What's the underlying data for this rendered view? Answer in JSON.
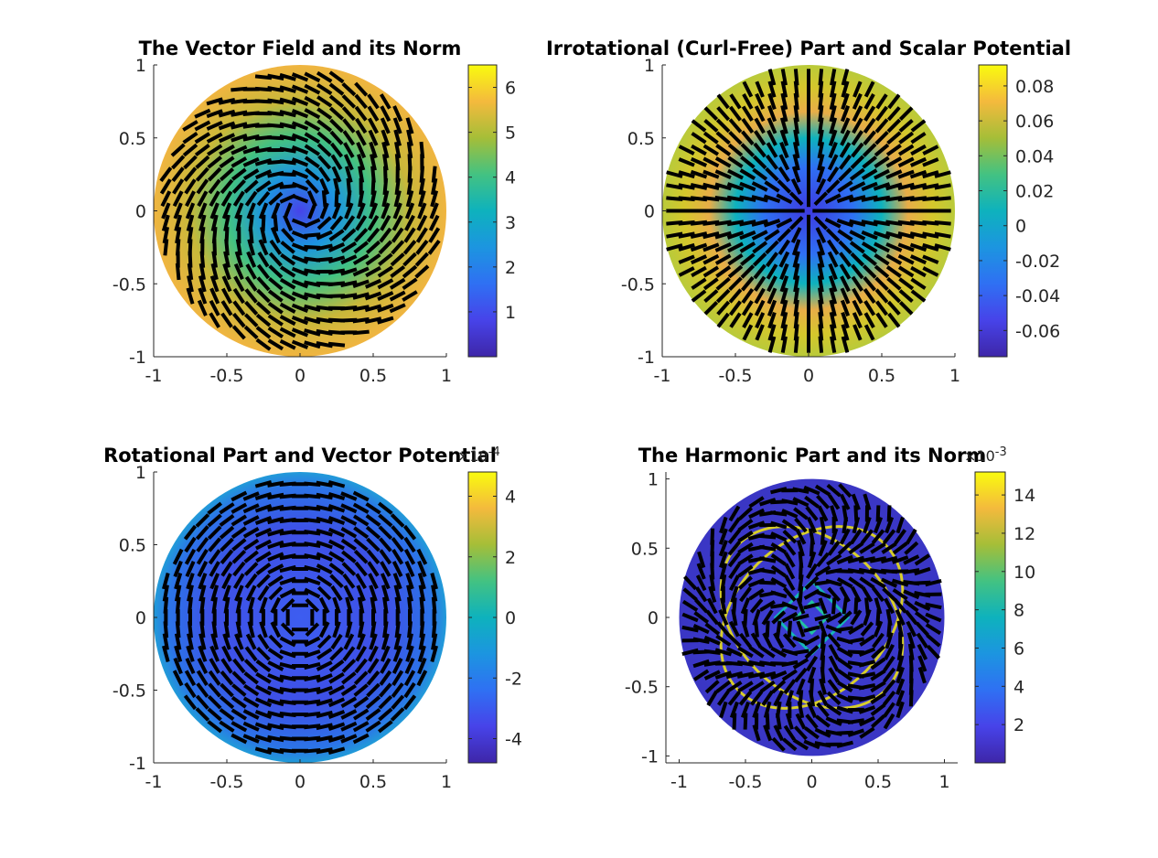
{
  "chart_data": [
    {
      "type": "heatmap",
      "title": "The Vector Field and its Norm",
      "field": "rotational swirl with magnitude growing toward the rim",
      "xlim": [
        -1,
        1
      ],
      "ylim": [
        -1,
        1
      ],
      "xticks": [
        -1,
        -0.5,
        0,
        0.5,
        1
      ],
      "yticks": [
        -1,
        -0.5,
        0,
        0.5,
        1
      ],
      "xtick_labels": [
        "-1",
        "-0.5",
        "0",
        "0.5",
        "1"
      ],
      "ytick_labels": [
        "-1",
        "-0.5",
        "0",
        "0.5",
        "1"
      ],
      "colorbar": {
        "range": [
          0,
          6.5
        ],
        "ticks": [
          1,
          2,
          3,
          4,
          5,
          6
        ],
        "tick_labels": [
          "1",
          "2",
          "3",
          "4",
          "5",
          "6"
        ],
        "exponent_label": ""
      },
      "colormap": "parula",
      "arrows": "black quiver segments over a filled unit disk"
    },
    {
      "type": "heatmap",
      "title": "Irrotational (Curl-Free) Part and Scalar Potential",
      "field": "radial arrows; potential low at centre, high at rim",
      "xlim": [
        -1,
        1
      ],
      "ylim": [
        -1,
        1
      ],
      "xticks": [
        -1,
        -0.5,
        0,
        0.5,
        1
      ],
      "yticks": [
        -1,
        -0.5,
        0,
        0.5,
        1
      ],
      "xtick_labels": [
        "-1",
        "-0.5",
        "0",
        "0.5",
        "1"
      ],
      "ytick_labels": [
        "-1",
        "-0.5",
        "0",
        "0.5",
        "1"
      ],
      "colorbar": {
        "range": [
          -0.075,
          0.092
        ],
        "ticks": [
          -0.06,
          -0.04,
          -0.02,
          0,
          0.02,
          0.04,
          0.06,
          0.08
        ],
        "tick_labels": [
          "-0.06",
          "-0.04",
          "-0.02",
          "0",
          "0.02",
          "0.04",
          "0.06",
          "0.08"
        ],
        "exponent_label": ""
      },
      "colormap": "parula",
      "arrows": "black quiver segments over a filled unit disk"
    },
    {
      "type": "heatmap",
      "title": "Rotational Part and Vector Potential",
      "field": "circular arrows; nearly uniform low potential",
      "xlim": [
        -1,
        1
      ],
      "ylim": [
        -1,
        1
      ],
      "xticks": [
        -1,
        -0.5,
        0,
        0.5,
        1
      ],
      "yticks": [
        -1,
        -0.5,
        0,
        0.5,
        1
      ],
      "xtick_labels": [
        "-1",
        "-0.5",
        "0",
        "0.5",
        "1"
      ],
      "ytick_labels": [
        "-1",
        "-0.5",
        "0",
        "0.5",
        "1"
      ],
      "colorbar": {
        "range": [
          -4.8,
          4.8
        ],
        "ticks": [
          -4,
          -2,
          0,
          2,
          4
        ],
        "tick_labels": [
          "-4",
          "-2",
          "0",
          "2",
          "4"
        ],
        "exponent_label": "×10-4"
      },
      "colormap": "parula",
      "arrows": "black quiver segments over a filled unit disk"
    },
    {
      "type": "heatmap",
      "title": "The Harmonic Part and its Norm",
      "field": "mostly low norm with bright curved ridges",
      "xlim": [
        -1.1,
        1.1
      ],
      "ylim": [
        -1.05,
        1.05
      ],
      "xticks": [
        -1,
        -0.5,
        0,
        0.5,
        1
      ],
      "yticks": [
        -1,
        -0.5,
        0,
        0.5,
        1
      ],
      "xtick_labels": [
        "-1",
        "-0.5",
        "0",
        "0.5",
        "1"
      ],
      "ytick_labels": [
        "-1",
        "-0.5",
        "0",
        "0.5",
        "1"
      ],
      "colorbar": {
        "range": [
          0,
          15.2
        ],
        "ticks": [
          2,
          4,
          6,
          8,
          10,
          12,
          14
        ],
        "tick_labels": [
          "2",
          "4",
          "6",
          "8",
          "10",
          "12",
          "14"
        ],
        "exponent_label": "×10-3"
      },
      "colormap": "parula",
      "arrows": "black quiver segments over a filled unit disk"
    }
  ]
}
